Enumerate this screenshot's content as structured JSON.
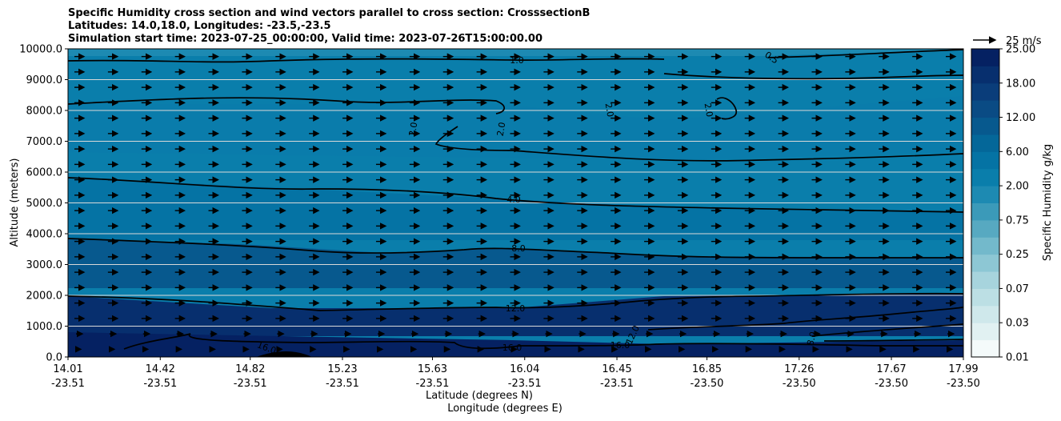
{
  "header": {
    "title_line1": "Specific Humidity cross section and wind vectors parallel to cross section: CrosssectionB",
    "title_line2": "Latitudes: 14.0,18.0, Longitudes: -23.5,-23.5",
    "title_line3": "Simulation start time: 2023-07-25_00:00:00, Valid time: 2023-07-26T15:00:00.00"
  },
  "chart_data": {
    "type": "heatmap",
    "title": "Specific Humidity cross section and wind vectors parallel to cross section: CrosssectionB",
    "xlabel": "Latitude (degrees N)",
    "xlabel2": "Longitude (degrees E)",
    "ylabel": "Altitude (meters)",
    "ylim": [
      0,
      10000
    ],
    "y_ticks": [
      "0.0",
      "1000.0",
      "2000.0",
      "3000.0",
      "4000.0",
      "5000.0",
      "6000.0",
      "7000.0",
      "8000.0",
      "9000.0",
      "10000.0"
    ],
    "x_ticks": [
      {
        "lat": "14.01",
        "lon": "-23.51"
      },
      {
        "lat": "14.42",
        "lon": "-23.51"
      },
      {
        "lat": "14.82",
        "lon": "-23.51"
      },
      {
        "lat": "15.23",
        "lon": "-23.51"
      },
      {
        "lat": "15.63",
        "lon": "-23.51"
      },
      {
        "lat": "16.04",
        "lon": "-23.51"
      },
      {
        "lat": "16.45",
        "lon": "-23.51"
      },
      {
        "lat": "16.85",
        "lon": "-23.50"
      },
      {
        "lat": "17.26",
        "lon": "-23.50"
      },
      {
        "lat": "17.67",
        "lon": "-23.50"
      },
      {
        "lat": "17.99",
        "lon": "-23.50"
      }
    ],
    "grid": "horizontal",
    "colorbar": {
      "label": "Specific Humidity g/kg",
      "tick_labels": [
        "0.01",
        "0.03",
        "0.07",
        "0.25",
        "0.75",
        "2.00",
        "6.00",
        "12.00",
        "18.00",
        "25.00"
      ],
      "levels": [
        0.01,
        0.02,
        0.03,
        0.05,
        0.07,
        0.1,
        0.25,
        0.5,
        0.75,
        1,
        2,
        4,
        6,
        8,
        12,
        14,
        18,
        20,
        25
      ],
      "colors": [
        "#f4fafa",
        "#e1f1f2",
        "#cfe8eb",
        "#bcdfe4",
        "#a7d4dd",
        "#8dc7d4",
        "#73b9cb",
        "#57a9c1",
        "#3b9ab9",
        "#1d8ab2",
        "#0a7eab",
        "#0573a4",
        "#046799",
        "#07598e",
        "#0a4b84",
        "#0a3d7a",
        "#072f6e",
        "#052162"
      ]
    },
    "contour_labels": [
      "0.5",
      "1.0",
      "2.0",
      "2.0",
      "2.0",
      "2.0",
      "4.0",
      "8.0",
      "12.0",
      "12.0",
      "16.0",
      "16.0",
      "16.0",
      "8.0"
    ],
    "wind_arrow_key": "25 m/s",
    "vector_columns": 27,
    "vector_rows": 20
  }
}
